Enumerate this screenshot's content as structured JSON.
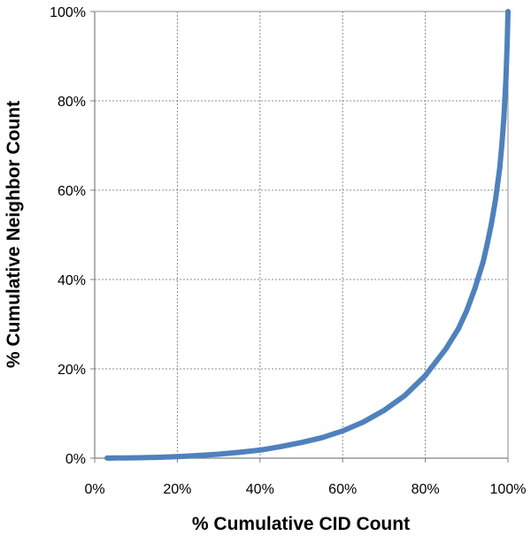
{
  "chart_data": {
    "type": "scatter",
    "title": "",
    "xlabel": "% Cumulative CID Count",
    "ylabel": "% Cumulative Neighbor Count",
    "xlim": [
      0,
      100
    ],
    "ylim": [
      0,
      100
    ],
    "x_ticks": [
      "0%",
      "20%",
      "40%",
      "60%",
      "80%",
      "100%"
    ],
    "y_ticks": [
      "0%",
      "20%",
      "40%",
      "60%",
      "80%",
      "100%"
    ],
    "grid": true,
    "legend": "none",
    "series_color": "#4f81bd",
    "series": [
      {
        "x": [
          3,
          5,
          7,
          9,
          11,
          13,
          15,
          17,
          20,
          25,
          30,
          35,
          40,
          45,
          50,
          55,
          60,
          65,
          70,
          75,
          80,
          85,
          88,
          90,
          92,
          94,
          95,
          96,
          97,
          98,
          98.5,
          99,
          99.5,
          99.8,
          100
        ],
        "y": [
          0.02,
          0.03,
          0.05,
          0.07,
          0.09,
          0.13,
          0.17,
          0.23,
          0.35,
          0.6,
          0.9,
          1.3,
          1.8,
          2.6,
          3.5,
          4.6,
          6.1,
          8.1,
          10.7,
          14.0,
          18.5,
          24.5,
          29.0,
          33.0,
          38.0,
          44.0,
          48.0,
          52.5,
          58.0,
          65.0,
          70.0,
          76.0,
          85.0,
          93.0,
          100.0
        ]
      }
    ]
  }
}
